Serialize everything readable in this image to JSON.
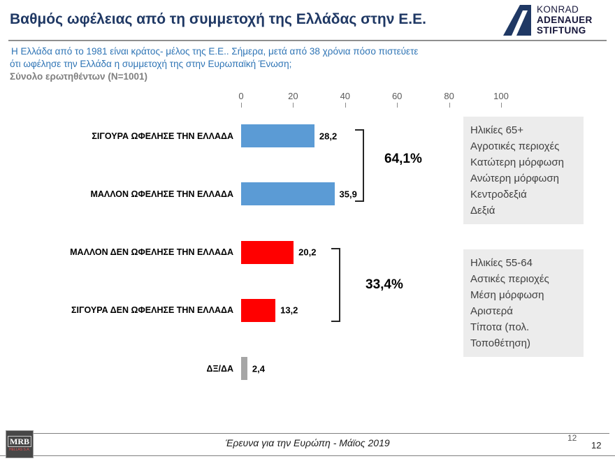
{
  "header": {
    "title": "Βαθμός ωφέλειας από τη συμμετοχή της Ελλάδας στην Ε.Ε.",
    "logo": {
      "line1": "KONRAD",
      "line2": "ADENAUER",
      "line3": "STIFTUNG"
    }
  },
  "intro": {
    "line1": "Η Ελλάδα από το 1981 είναι κράτος- μέλος της Ε.Ε.. Σήμερα, μετά από 38 χρόνια πόσο πιστεύετε",
    "line2": "ότι ωφέλησε την Ελλάδα η συμμετοχή της στην Ευρωπαϊκή Ένωση;",
    "base": "Σύνολο ερωτηθέντων (N=1001)"
  },
  "chart_data": {
    "type": "bar",
    "orientation": "horizontal",
    "categories": [
      "ΣΙΓΟΥΡΑ ΩΦΕΛΗΣΕ ΤΗΝ ΕΛΛΑΔΑ",
      "ΜΑΛΛΟΝ ΩΦΕΛΗΣΕ ΤΗΝ ΕΛΛΑΔΑ",
      "ΜΑΛΛΟΝ ΔΕΝ ΩΦΕΛΗΣΕ ΤΗΝ ΕΛΛΑΔΑ",
      "ΣΙΓΟΥΡΑ ΔΕΝ ΩΦΕΛΗΣΕ ΤΗΝ ΕΛΛΑΔΑ",
      "ΔΞ/ΔΑ"
    ],
    "values": [
      28.2,
      35.9,
      20.2,
      13.2,
      2.4
    ],
    "value_labels": [
      "28,2",
      "35,9",
      "20,2",
      "13,2",
      "2,4"
    ],
    "bar_colors": [
      "#5B9BD5",
      "#5B9BD5",
      "#FF0000",
      "#FF0000",
      "#A6A6A6"
    ],
    "xlim": [
      0,
      100
    ],
    "x_ticks": [
      0,
      20,
      40,
      60,
      80,
      100
    ],
    "grid": false,
    "groups": [
      {
        "label": "64,1%",
        "rows": [
          0,
          1
        ]
      },
      {
        "label": "33,4%",
        "rows": [
          2,
          3
        ]
      }
    ]
  },
  "annotations": [
    {
      "lines": [
        "Ηλικίες 65+",
        "Αγροτικές περιοχές",
        "Κατώτερη μόρφωση",
        "Ανώτερη μόρφωση",
        "Κεντροδεξιά",
        "Δεξιά"
      ]
    },
    {
      "lines": [
        "Ηλικίες 55-64",
        "Αστικές περιοχές",
        "Μέση μόρφωση",
        "Αριστερά",
        "Τίποτα (πολ.",
        "Τοποθέτηση)"
      ]
    }
  ],
  "footer": {
    "source": "Έρευνα για την Ευρώπη - Μάϊος 2019",
    "page_number": "12",
    "slide_number": "12",
    "mrb_name": "MRB",
    "mrb_sub": "HELLAS S.A."
  },
  "colors": {
    "title": "#1F3864",
    "subtitle": "#2E74B5",
    "positive_bar": "#5B9BD5",
    "negative_bar": "#FF0000",
    "neutral_bar": "#A6A6A6",
    "annotation_bg": "#ECECEC"
  }
}
